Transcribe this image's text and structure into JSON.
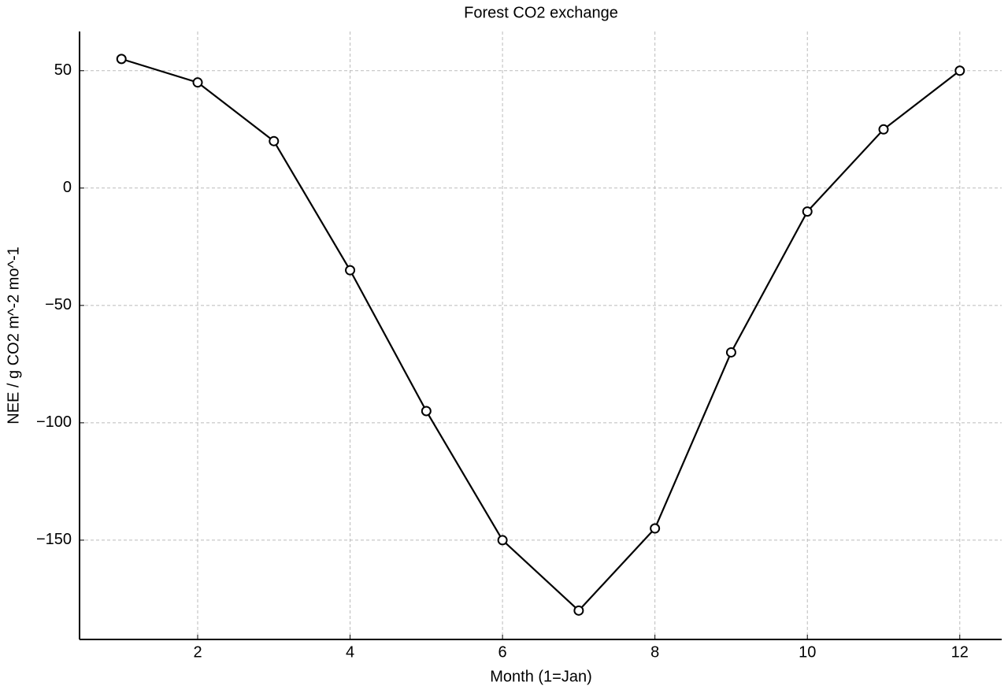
{
  "chart_data": {
    "type": "line",
    "title": "Forest CO2 exchange",
    "x_label": "Month (1=Jan)",
    "y_label": "NEE / g CO2 m^-2 mo^-1",
    "x": [
      1,
      2,
      3,
      4,
      5,
      6,
      7,
      8,
      9,
      10,
      11,
      12
    ],
    "values": [
      55,
      45,
      20,
      -35,
      -95,
      -150,
      -180,
      -145,
      -70,
      -10,
      25,
      50
    ],
    "color": "#000000",
    "xlim": [
      0.45,
      12.55
    ],
    "xticks": [
      2,
      4,
      6,
      8,
      10,
      12
    ],
    "ylim": [
      -192.3,
      66.7
    ],
    "yticks": [
      {
        "value": -150,
        "label": "−150"
      },
      {
        "value": -100,
        "label": "−100"
      },
      {
        "value": -50,
        "label": "−50"
      },
      0,
      50
    ],
    "grid": true
  }
}
